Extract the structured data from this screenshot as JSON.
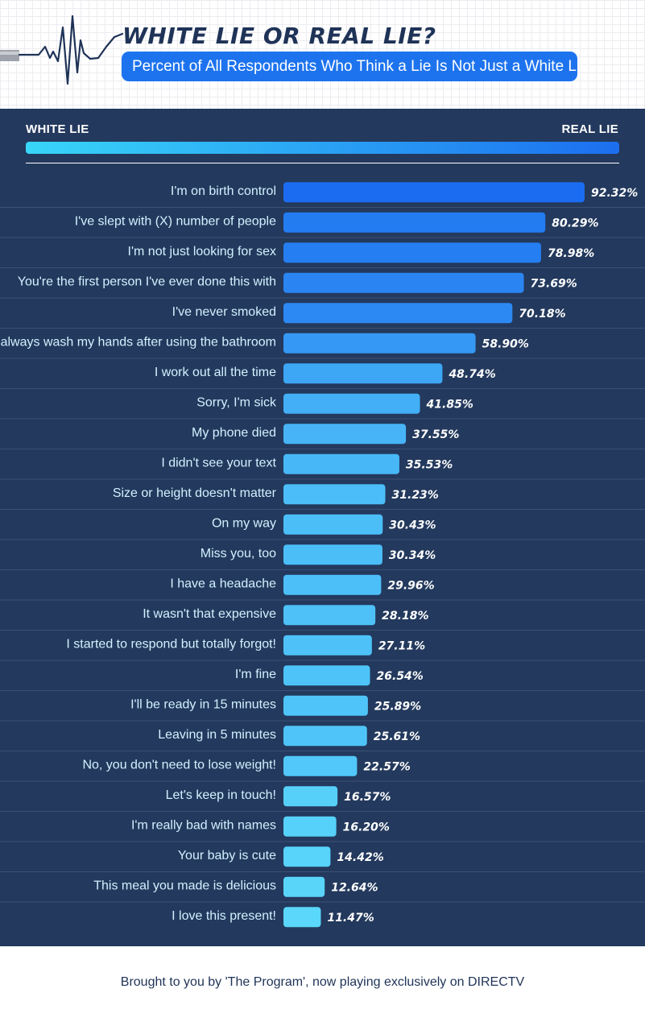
{
  "header": {
    "title": "WHITE LIE OR REAL LIE?",
    "subtitle": "Percent of All Respondents Who Think a Lie Is Not Just a White Lie"
  },
  "scale": {
    "left_label": "WHITE LIE",
    "right_label": "REAL LIE",
    "gradient_colors": [
      "#38d6f8",
      "#1c6ff0"
    ]
  },
  "colors": {
    "panel_background": "#23395d",
    "bar_strong": "#1b6cf0",
    "bar_light": "#5ad7fa",
    "label_text": "#d2f1ff",
    "title": "#1f3357",
    "subtitle_background": "#1d73ee"
  },
  "chart_data": {
    "type": "bar",
    "orientation": "horizontal",
    "title": "WHITE LIE OR REAL LIE?",
    "subtitle": "Percent of All Respondents Who Think a Lie Is Not Just a White Lie",
    "unit": "%",
    "xlim": [
      0,
      100
    ],
    "grid": false,
    "legend": "none",
    "categories": [
      "I'm on birth control",
      "I've slept with (X) number of people",
      "I'm not just looking for sex",
      "You're the first person I've ever done this with",
      "I've never smoked",
      "I always wash my hands after using the bathroom",
      "I work out all the time",
      "Sorry, I'm sick",
      "My phone died",
      "I didn't see your text",
      "Size or height doesn't matter",
      "On my way",
      "Miss you, too",
      "I have a headache",
      "It wasn't that expensive",
      "I started to respond but totally forgot!",
      "I'm fine",
      "I'll be ready in 15 minutes",
      "Leaving in 5 minutes",
      "No, you don't need to lose weight!",
      "Let's keep in touch!",
      "I'm really bad with names",
      "Your baby is cute",
      "This meal you made is delicious",
      "I love this present!"
    ],
    "values": [
      92.32,
      80.29,
      78.98,
      73.69,
      70.18,
      58.9,
      48.74,
      41.85,
      37.55,
      35.53,
      31.23,
      30.43,
      30.34,
      29.96,
      28.18,
      27.11,
      26.54,
      25.89,
      25.61,
      22.57,
      16.57,
      16.2,
      14.42,
      12.64,
      11.47
    ],
    "value_labels": [
      "92.32%",
      "80.29%",
      "78.98%",
      "73.69%",
      "70.18%",
      "58.90%",
      "48.74%",
      "41.85%",
      "37.55%",
      "35.53%",
      "31.23%",
      "30.43%",
      "30.34%",
      "29.96%",
      "28.18%",
      "27.11%",
      "26.54%",
      "25.89%",
      "25.61%",
      "22.57%",
      "16.57%",
      "16.20%",
      "14.42%",
      "12.64%",
      "11.47%"
    ]
  },
  "footer": {
    "text": "Brought to you by 'The Program', now playing exclusively on DIRECTV"
  }
}
